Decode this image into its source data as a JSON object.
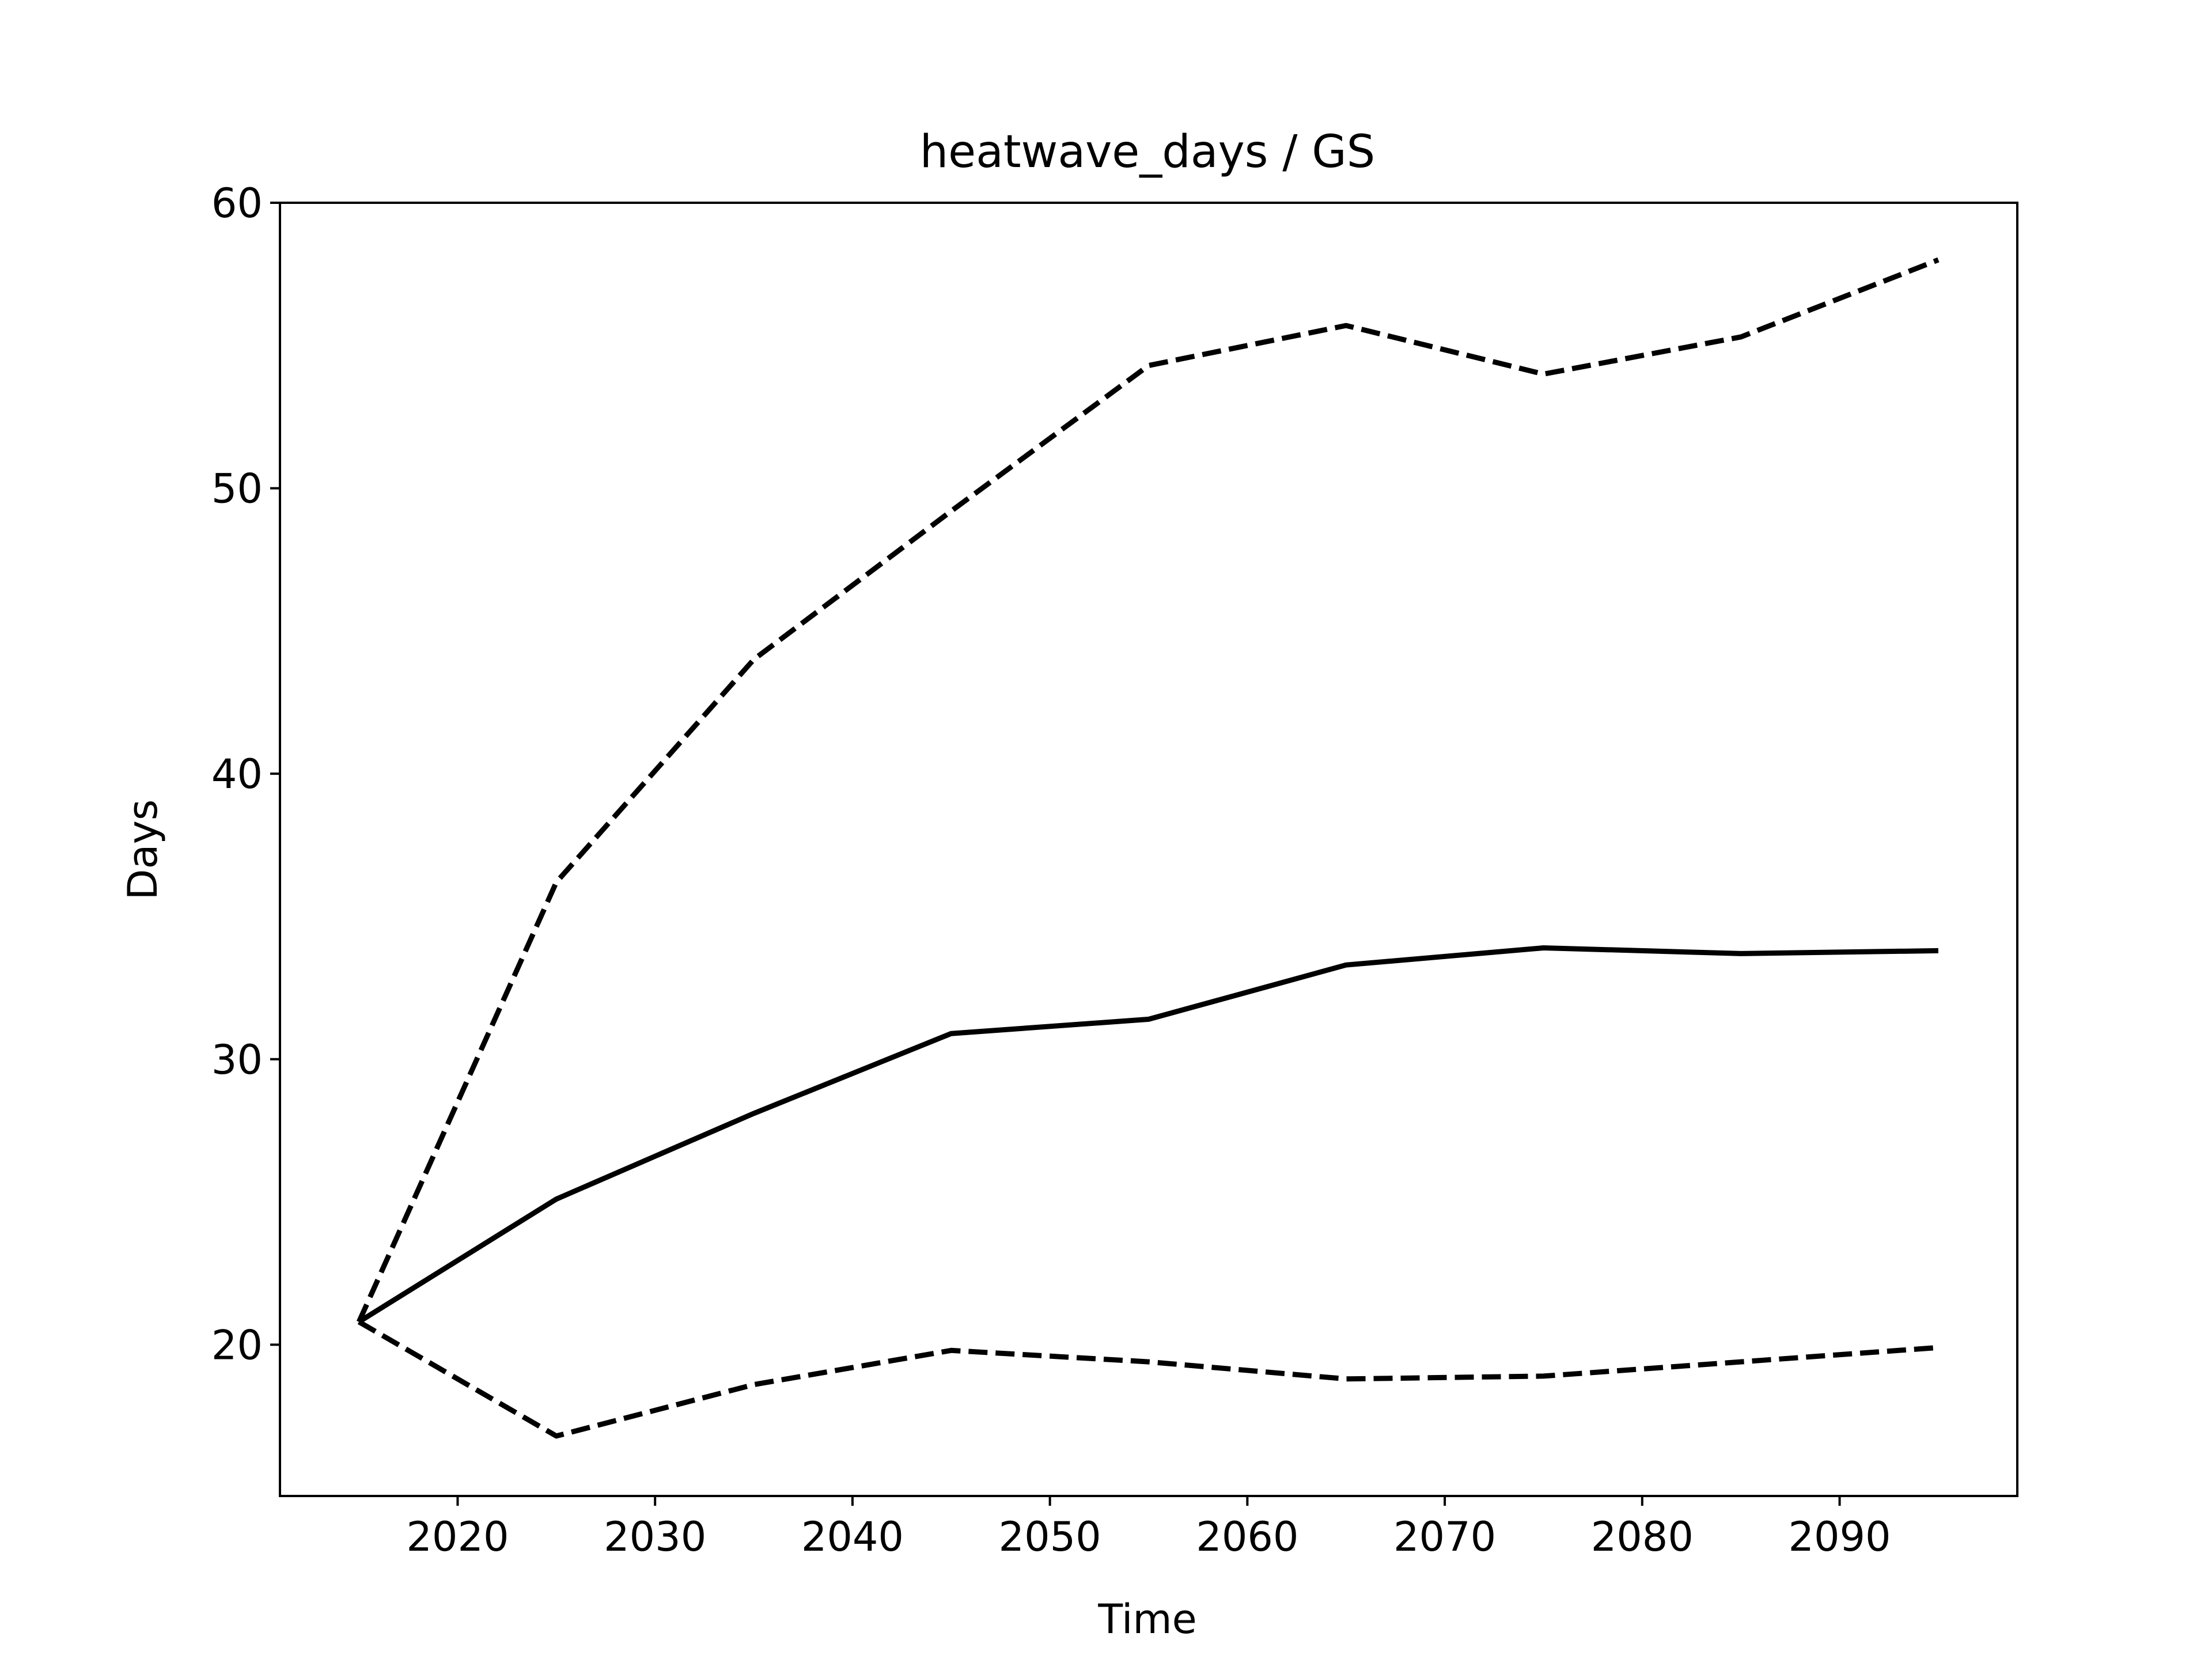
{
  "chart_data": {
    "type": "line",
    "title": "heatwave_days / GS",
    "xlabel": "Time",
    "ylabel": "Days",
    "x": [
      2015,
      2025,
      2035,
      2045,
      2055,
      2065,
      2075,
      2085,
      2095
    ],
    "xlim": [
      2011,
      2099
    ],
    "ylim": [
      14.7,
      60
    ],
    "xticks": [
      2020,
      2030,
      2040,
      2050,
      2060,
      2070,
      2080,
      2090
    ],
    "yticks": [
      20,
      30,
      40,
      50,
      60
    ],
    "grid": false,
    "series": [
      {
        "style": "solid",
        "color": "#000000",
        "values": [
          20.8,
          25.1,
          28.1,
          30.9,
          31.4,
          33.3,
          33.9,
          33.7,
          33.8
        ]
      },
      {
        "style": "dashed",
        "color": "#000000",
        "values": [
          20.8,
          36.2,
          44.0,
          49.2,
          54.3,
          55.7,
          54.0,
          55.3,
          58.0
        ]
      },
      {
        "style": "dashed",
        "color": "#000000",
        "values": [
          20.8,
          16.8,
          18.6,
          19.8,
          19.4,
          18.8,
          18.9,
          19.4,
          19.9
        ]
      }
    ]
  }
}
